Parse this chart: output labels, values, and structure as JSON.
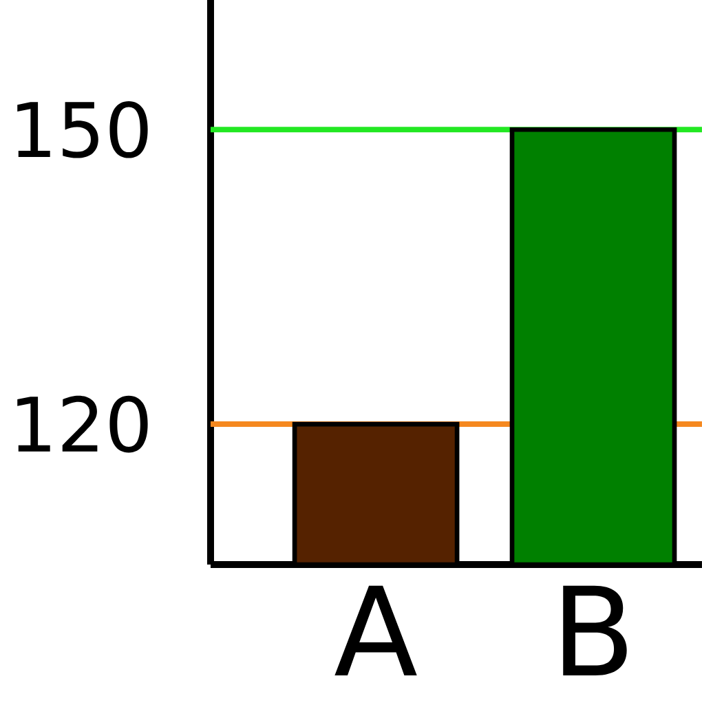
{
  "chart_data": {
    "type": "bar",
    "categories": [
      "A",
      "B"
    ],
    "values": [
      120,
      150
    ],
    "colors": [
      "#552200",
      "#008000"
    ],
    "ylim": [
      105.7,
      163.2
    ],
    "yticks": [
      120,
      150
    ],
    "ref_lines": [
      {
        "axis": "y",
        "value": 120,
        "color": "#f5881f"
      },
      {
        "axis": "y",
        "value": 150,
        "color": "#22e822"
      }
    ]
  }
}
